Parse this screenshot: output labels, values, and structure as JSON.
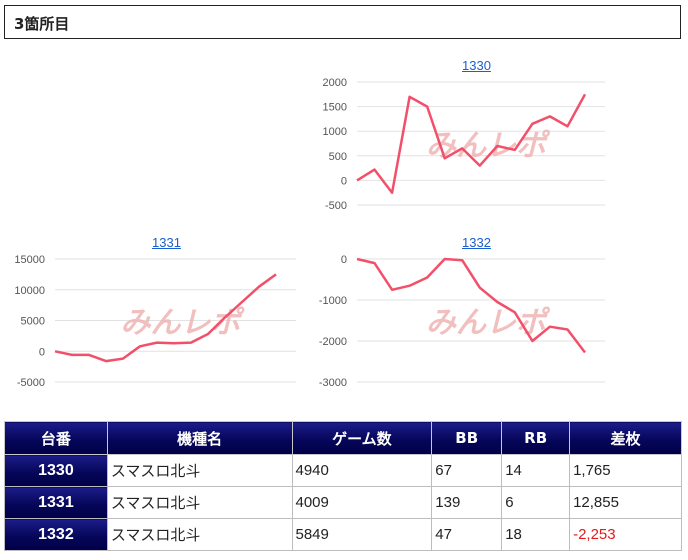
{
  "section": {
    "title": "3箇所目"
  },
  "colors": {
    "line": "#f2506a",
    "header_bg": "#06065a",
    "negative": "#e21b1b",
    "link": "#1a5fcf"
  },
  "watermark": "みんレポ",
  "chart_data": [
    {
      "type": "line",
      "title": "1330",
      "y_ticks": [
        "2000",
        "1500",
        "1000",
        "500",
        "0",
        "-500"
      ],
      "ylim": [
        -500,
        2000
      ],
      "values": [
        0,
        220,
        -250,
        1700,
        1500,
        450,
        650,
        300,
        700,
        620,
        1150,
        1300,
        1100,
        1750
      ],
      "grid": true
    },
    {
      "type": "line",
      "title": "1331",
      "y_ticks": [
        "15000",
        "10000",
        "5000",
        "0",
        "-5000"
      ],
      "ylim": [
        -5000,
        15000
      ],
      "values": [
        0,
        -600,
        -600,
        -1600,
        -1200,
        800,
        1400,
        1300,
        1400,
        2800,
        5500,
        8000,
        10500,
        12500
      ],
      "grid": true
    },
    {
      "type": "line",
      "title": "1332",
      "y_ticks": [
        "0",
        "-1000",
        "-2000",
        "-3000"
      ],
      "ylim": [
        -3000,
        0
      ],
      "values": [
        0,
        -100,
        -750,
        -650,
        -450,
        0,
        -30,
        -700,
        -1050,
        -1300,
        -2000,
        -1650,
        -1720,
        -2280
      ],
      "grid": true
    }
  ],
  "table": {
    "headers": [
      "台番",
      "機種名",
      "ゲーム数",
      "BB",
      "RB",
      "差枚"
    ],
    "rows": [
      {
        "id": "1330",
        "machine": "スマスロ北斗",
        "games": "4940",
        "bb": "67",
        "rb": "14",
        "diff": "1,765",
        "negative": false
      },
      {
        "id": "1331",
        "machine": "スマスロ北斗",
        "games": "4009",
        "bb": "139",
        "rb": "6",
        "diff": "12,855",
        "negative": false
      },
      {
        "id": "1332",
        "machine": "スマスロ北斗",
        "games": "5849",
        "bb": "47",
        "rb": "18",
        "diff": "-2,253",
        "negative": true
      }
    ]
  }
}
